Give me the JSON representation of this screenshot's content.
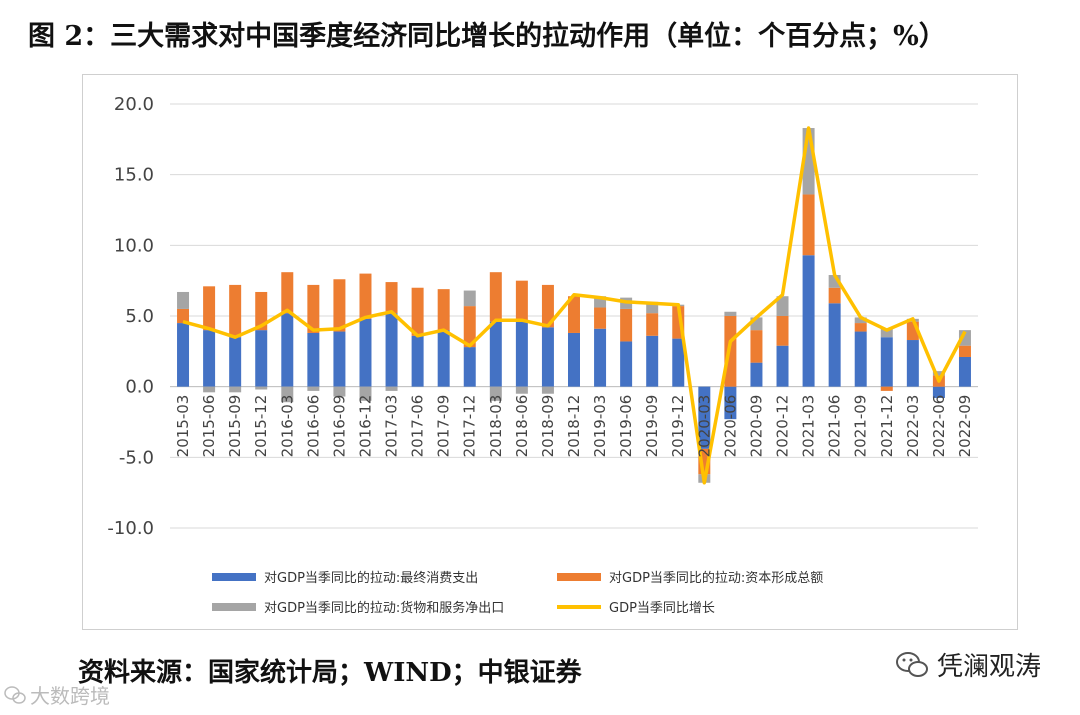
{
  "title": "图 2：三大需求对中国季度经济同比增长的拉动作用（单位：个百分点；%）",
  "source": "资料来源：国家统计局；WIND；中银证券",
  "watermarks": {
    "right": "凭澜观涛",
    "left": "大数跨境"
  },
  "icons": {
    "right": "wechat-icon",
    "left": "wechat-outline-icon"
  },
  "colors": {
    "consumption": "#4472C4",
    "capital": "#ED7D31",
    "netexport": "#A5A5A5",
    "gdp": "#FFC000"
  },
  "chart_data": {
    "type": "bar",
    "stacked": true,
    "categories": [
      "2015-03",
      "2015-06",
      "2015-09",
      "2015-12",
      "2016-03",
      "2016-06",
      "2016-09",
      "2016-12",
      "2017-03",
      "2017-06",
      "2017-09",
      "2017-12",
      "2018-03",
      "2018-06",
      "2018-09",
      "2018-12",
      "2019-03",
      "2019-06",
      "2019-09",
      "2019-12",
      "2020-03",
      "2020-06",
      "2020-09",
      "2020-12",
      "2021-03",
      "2021-06",
      "2021-09",
      "2021-12",
      "2022-03",
      "2022-06",
      "2022-09"
    ],
    "series": [
      {
        "name": "对GDP当季同比的拉动:最终消费支出",
        "type": "bar",
        "values": [
          4.5,
          4.0,
          3.5,
          4.0,
          5.2,
          3.8,
          3.9,
          4.8,
          5.2,
          3.6,
          4.0,
          2.8,
          4.6,
          4.6,
          4.2,
          3.8,
          4.1,
          3.2,
          3.6,
          3.4,
          -4.4,
          -2.3,
          1.7,
          2.9,
          9.3,
          5.9,
          3.9,
          3.5,
          3.3,
          -0.8,
          2.1
        ]
      },
      {
        "name": "对GDP当季同比的拉动:资本形成总额",
        "type": "bar",
        "values": [
          1.0,
          3.1,
          3.7,
          2.7,
          2.9,
          3.4,
          3.7,
          3.2,
          2.2,
          3.4,
          2.9,
          2.9,
          3.5,
          2.9,
          3.0,
          2.6,
          1.5,
          2.3,
          1.6,
          2.3,
          -1.8,
          5.0,
          2.3,
          2.1,
          4.3,
          1.1,
          0.6,
          -0.3,
          1.3,
          0.8,
          0.8
        ]
      },
      {
        "name": "对GDP当季同比的拉动:货物和服务净出口",
        "type": "bar",
        "values": [
          1.2,
          -0.4,
          -0.4,
          -0.2,
          -1.1,
          -0.3,
          -0.7,
          -1.0,
          -0.3,
          0.0,
          0.0,
          1.1,
          -1.0,
          -0.5,
          -0.5,
          0.0,
          0.8,
          0.8,
          0.8,
          0.1,
          -0.6,
          0.3,
          0.9,
          1.4,
          4.7,
          0.9,
          0.4,
          0.6,
          0.2,
          0.3,
          1.1
        ]
      },
      {
        "name": "GDP当季同比增长",
        "type": "line",
        "values": [
          4.6,
          4.1,
          3.5,
          4.3,
          5.4,
          4.0,
          4.1,
          4.9,
          5.3,
          3.6,
          4.0,
          2.9,
          4.7,
          4.7,
          4.3,
          6.5,
          6.3,
          6.0,
          5.9,
          5.8,
          -6.8,
          3.2,
          4.9,
          6.5,
          18.3,
          7.9,
          4.9,
          4.0,
          4.8,
          0.4,
          3.9
        ]
      }
    ],
    "yticks": [
      "20.0",
      "15.0",
      "10.0",
      "5.0",
      "0.0",
      "-5.0",
      "-10.0"
    ],
    "ylim": [
      -10,
      20
    ],
    "grid": true,
    "legend_position": "bottom"
  }
}
